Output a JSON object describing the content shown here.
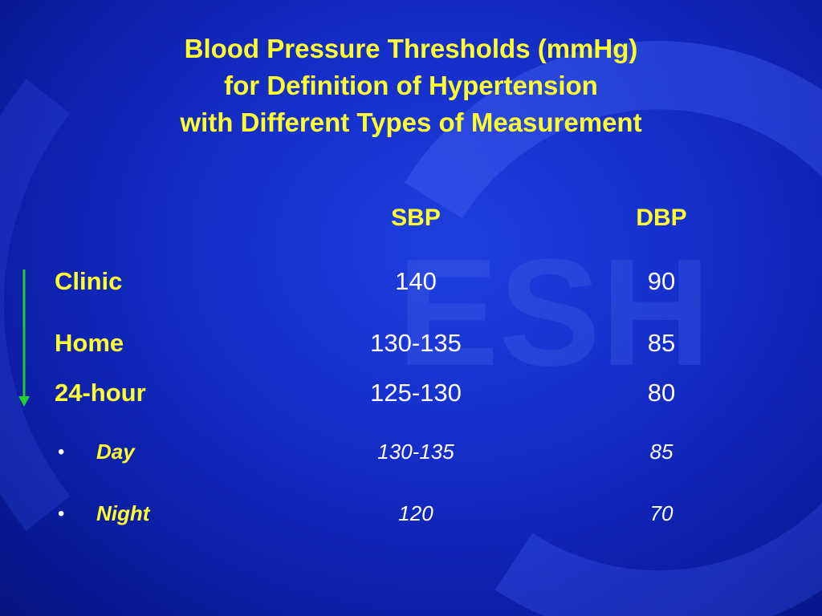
{
  "slide": {
    "title_lines": [
      "Blood Pressure Thresholds (mmHg)",
      "for Definition of Hypertension",
      "with Different Types of Measurement"
    ],
    "watermark_text": "ESH",
    "columns": [
      "SBP",
      "DBP"
    ],
    "rows": [
      {
        "label": "Clinic",
        "sbp": "140",
        "dbp": "90"
      },
      {
        "label": "Home",
        "sbp": "130-135",
        "dbp": "85"
      },
      {
        "label": "24-hour",
        "sbp": "125-130",
        "dbp": "80"
      }
    ],
    "subrows": [
      {
        "bullet": "•",
        "label": "Day",
        "sbp": "130-135",
        "dbp": "85"
      },
      {
        "bullet": "•",
        "label": "Night",
        "sbp": "120",
        "dbp": "70"
      }
    ],
    "colors": {
      "title": "#ffff2e",
      "values": "#ffffff",
      "arrow": "#22cc33",
      "background": "#1530cc"
    }
  }
}
